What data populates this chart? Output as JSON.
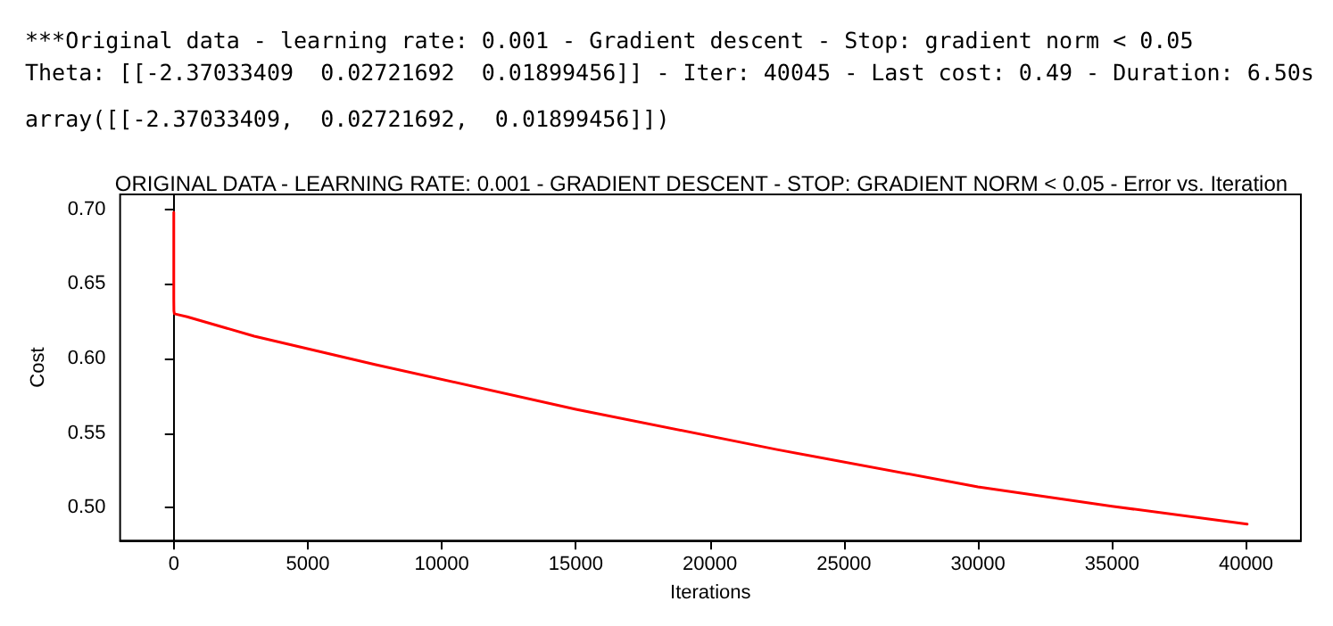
{
  "chart_data": {
    "type": "line",
    "title": "ORIGINAL DATA - LEARNING RATE: 0.001 - GRADIENT DESCENT - STOP: GRADIENT NORM < 0.05 - Error vs. Iteration",
    "xlabel": "Iterations",
    "ylabel": "Cost",
    "annotations": [
      "***Original data - learning rate: 0.001 - Gradient descent - Stop: gradient norm < 0.05",
      "Theta: [[-2.37033409  0.02721692  0.01899456]] - Iter: 40045 - Last cost: 0.49 - Duration: 6.50s",
      "array([[-2.37033409,  0.02721692,  0.01899456]])"
    ],
    "series": [
      {
        "color": "#ff0000",
        "x": [
          0,
          0,
          0,
          5,
          20,
          500,
          3000,
          7500,
          15000,
          22500,
          30000,
          35000,
          40045
        ],
        "values": [
          0.698,
          0.693,
          0.64,
          0.632,
          0.63,
          0.628,
          0.615,
          0.596,
          0.566,
          0.539,
          0.514,
          0.501,
          0.489
        ]
      }
    ],
    "xlim": [
      -2002,
      42047
    ],
    "xticks": [
      0,
      5000,
      10000,
      15000,
      20000,
      25000,
      30000,
      35000,
      40000
    ],
    "ylim": [
      0.478,
      0.71
    ],
    "yticks": [
      {
        "value": 0.5,
        "label": "0.50"
      },
      0.55,
      {
        "value": 0.6,
        "label": "0.60"
      },
      0.65,
      {
        "value": 0.7,
        "label": "0.70"
      }
    ]
  }
}
